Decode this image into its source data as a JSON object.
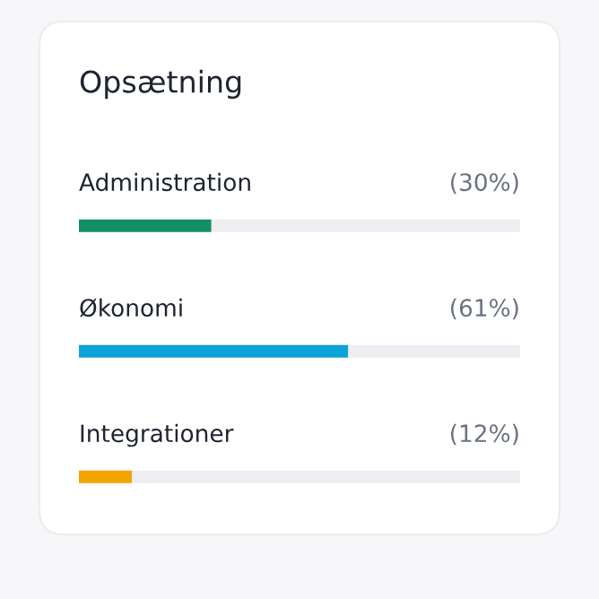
{
  "chart_data": {
    "type": "bar",
    "orientation": "horizontal",
    "title": "Opsætning",
    "categories": [
      "Administration",
      "Økonomi",
      "Integrationer"
    ],
    "values": [
      30,
      61,
      12
    ],
    "colors": [
      "#138f65",
      "#0ea2d6",
      "#f4a400"
    ],
    "value_labels": [
      "(30%)",
      "(61%)",
      "(12%)"
    ],
    "xlim": [
      0,
      100
    ]
  }
}
